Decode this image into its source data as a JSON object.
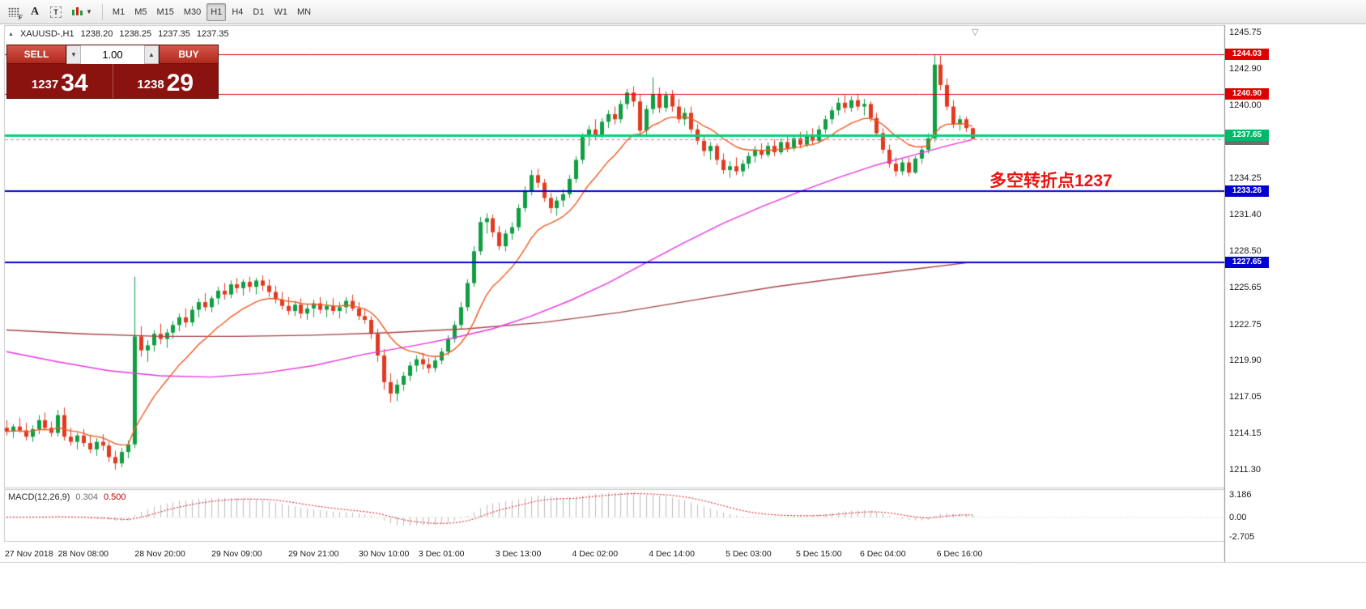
{
  "toolbar": {
    "icon_letters": {
      "f": "F",
      "a": "A",
      "t": "T"
    },
    "timeframes": [
      "M1",
      "M5",
      "M15",
      "M30",
      "H1",
      "H4",
      "D1",
      "W1",
      "MN"
    ],
    "active_timeframe": "H1"
  },
  "symbol_header": {
    "symbol": "XAUUSD-,H1",
    "open": "1238.20",
    "high": "1238.25",
    "low": "1237.35",
    "close": "1237.35"
  },
  "trade_panel": {
    "sell_label": "SELL",
    "buy_label": "BUY",
    "volume": "1.00",
    "sell_price_major": "1237",
    "sell_price_minor": "34",
    "buy_price_major": "1238",
    "buy_price_minor": "29"
  },
  "annotation": {
    "text": "多空转折点1237",
    "color": "#ee1212"
  },
  "shift_marker": "▽",
  "chart_data": {
    "type": "candlestick",
    "symbol": "XAUUSD-",
    "timeframe": "H1",
    "ylim": [
      1209.9,
      1246.25
    ],
    "y_ticks": [
      1245.75,
      1242.9,
      1240.0,
      1237.05,
      1234.25,
      1231.4,
      1228.5,
      1225.65,
      1222.75,
      1219.9,
      1217.05,
      1214.15,
      1211.3
    ],
    "x_ticks": [
      [
        0,
        "27 Nov 2018"
      ],
      [
        12,
        "28 Nov 08:00"
      ],
      [
        24,
        "28 Nov 20:00"
      ],
      [
        36,
        "29 Nov 09:00"
      ],
      [
        48,
        "29 Nov 21:00"
      ],
      [
        59,
        "30 Nov 10:00"
      ],
      [
        68,
        "3 Dec 01:00"
      ],
      [
        80,
        "3 Dec 13:00"
      ],
      [
        92,
        "4 Dec 02:00"
      ],
      [
        104,
        "4 Dec 14:00"
      ],
      [
        116,
        "5 Dec 03:00"
      ],
      [
        127,
        "5 Dec 15:00"
      ],
      [
        137,
        "6 Dec 04:00"
      ],
      [
        149,
        "6 Dec 16:00"
      ]
    ],
    "hlines": [
      {
        "price": 1244.03,
        "label": "1244.03",
        "color": "#e10000",
        "badge": "#dd0000",
        "width": 1,
        "dashed": false
      },
      {
        "price": 1240.9,
        "label": "1240.90",
        "color": "#e10000",
        "badge": "#dd0000",
        "width": 1,
        "dashed": false
      },
      {
        "price": 1237.35,
        "label": "1237.35",
        "color": "#9a9a9a",
        "badge": "#6e6e6e",
        "width": 1,
        "dashed": true
      },
      {
        "price": 1237.65,
        "label": "1237.65",
        "color": "#00d37c",
        "badge": "#00b96b",
        "width": 3,
        "dashed": false
      },
      {
        "price": 1233.26,
        "label": "1233.26",
        "color": "#0202cc",
        "badge": "#0202cc",
        "width": 2,
        "dashed": false
      },
      {
        "price": 1227.65,
        "label": "1227.65",
        "color": "#0202cc",
        "badge": "#0202cc",
        "width": 2,
        "dashed": false
      }
    ],
    "ma_fast_period": 13,
    "ma_mid_anchors": [
      [
        0,
        1220.6
      ],
      [
        8,
        1219.8
      ],
      [
        16,
        1219.1
      ],
      [
        24,
        1218.7
      ],
      [
        32,
        1218.6
      ],
      [
        40,
        1218.9
      ],
      [
        48,
        1219.5
      ],
      [
        56,
        1220.4
      ],
      [
        64,
        1221.1
      ],
      [
        70,
        1221.7
      ],
      [
        76,
        1222.4
      ],
      [
        82,
        1223.4
      ],
      [
        88,
        1224.6
      ],
      [
        94,
        1226.0
      ],
      [
        100,
        1227.6
      ],
      [
        106,
        1229.2
      ],
      [
        112,
        1230.7
      ],
      [
        118,
        1232.0
      ],
      [
        124,
        1233.2
      ],
      [
        130,
        1234.3
      ],
      [
        136,
        1235.3
      ],
      [
        142,
        1236.1
      ],
      [
        147,
        1236.8
      ],
      [
        151,
        1237.3
      ]
    ],
    "ma_slow_anchors": [
      [
        0,
        1222.3
      ],
      [
        12,
        1222.0
      ],
      [
        24,
        1221.8
      ],
      [
        36,
        1221.8
      ],
      [
        48,
        1221.9
      ],
      [
        60,
        1222.1
      ],
      [
        72,
        1222.4
      ],
      [
        84,
        1222.9
      ],
      [
        96,
        1223.7
      ],
      [
        108,
        1224.7
      ],
      [
        120,
        1225.7
      ],
      [
        132,
        1226.5
      ],
      [
        142,
        1227.1
      ],
      [
        151,
        1227.65
      ]
    ],
    "candles": [
      [
        1214.6,
        1215.2,
        1214.0,
        1214.3
      ],
      [
        1214.3,
        1214.9,
        1213.8,
        1214.7
      ],
      [
        1214.7,
        1215.4,
        1214.2,
        1214.4
      ],
      [
        1214.4,
        1215.0,
        1213.6,
        1213.9
      ],
      [
        1213.9,
        1214.8,
        1213.5,
        1214.5
      ],
      [
        1214.5,
        1215.6,
        1214.1,
        1215.2
      ],
      [
        1215.2,
        1215.8,
        1214.4,
        1214.6
      ],
      [
        1214.6,
        1215.1,
        1213.9,
        1214.2
      ],
      [
        1214.2,
        1216.0,
        1213.9,
        1215.6
      ],
      [
        1215.6,
        1216.2,
        1213.6,
        1213.9
      ],
      [
        1213.9,
        1214.6,
        1213.2,
        1213.5
      ],
      [
        1213.5,
        1214.2,
        1212.9,
        1214.0
      ],
      [
        1214.0,
        1214.5,
        1213.1,
        1213.4
      ],
      [
        1213.4,
        1214.0,
        1212.6,
        1212.9
      ],
      [
        1212.9,
        1213.8,
        1212.4,
        1213.5
      ],
      [
        1213.5,
        1214.1,
        1212.8,
        1213.2
      ],
      [
        1213.2,
        1213.5,
        1211.9,
        1212.3
      ],
      [
        1212.3,
        1212.8,
        1211.3,
        1211.8
      ],
      [
        1211.8,
        1213.0,
        1211.5,
        1212.7
      ],
      [
        1212.7,
        1213.6,
        1212.2,
        1213.3
      ],
      [
        1213.3,
        1226.5,
        1213.0,
        1221.8
      ],
      [
        1221.8,
        1222.6,
        1220.2,
        1220.7
      ],
      [
        1220.7,
        1221.5,
        1219.8,
        1221.1
      ],
      [
        1221.1,
        1222.3,
        1220.6,
        1222.0
      ],
      [
        1222.0,
        1222.8,
        1221.2,
        1221.6
      ],
      [
        1221.6,
        1222.4,
        1220.9,
        1222.1
      ],
      [
        1222.1,
        1223.0,
        1221.6,
        1222.7
      ],
      [
        1222.7,
        1223.6,
        1222.2,
        1223.3
      ],
      [
        1223.3,
        1224.0,
        1222.5,
        1222.9
      ],
      [
        1222.9,
        1224.2,
        1222.6,
        1223.9
      ],
      [
        1223.9,
        1224.8,
        1223.3,
        1224.5
      ],
      [
        1224.5,
        1225.2,
        1223.8,
        1224.1
      ],
      [
        1224.1,
        1225.0,
        1223.7,
        1224.8
      ],
      [
        1224.8,
        1225.7,
        1224.3,
        1225.4
      ],
      [
        1225.4,
        1226.0,
        1224.7,
        1225.1
      ],
      [
        1225.1,
        1226.2,
        1224.8,
        1225.9
      ],
      [
        1225.9,
        1226.4,
        1225.2,
        1225.6
      ],
      [
        1225.6,
        1226.3,
        1225.0,
        1226.1
      ],
      [
        1226.1,
        1226.5,
        1225.3,
        1225.7
      ],
      [
        1225.7,
        1226.4,
        1225.1,
        1226.2
      ],
      [
        1226.2,
        1226.6,
        1225.4,
        1225.8
      ],
      [
        1225.8,
        1226.3,
        1224.9,
        1225.3
      ],
      [
        1225.3,
        1225.8,
        1224.4,
        1224.7
      ],
      [
        1224.7,
        1225.3,
        1223.9,
        1224.2
      ],
      [
        1224.2,
        1224.9,
        1223.5,
        1223.8
      ],
      [
        1223.8,
        1224.6,
        1223.4,
        1224.3
      ],
      [
        1224.3,
        1224.8,
        1223.2,
        1223.6
      ],
      [
        1223.6,
        1224.4,
        1223.1,
        1224.0
      ],
      [
        1224.0,
        1224.7,
        1223.3,
        1224.4
      ],
      [
        1224.4,
        1224.9,
        1223.6,
        1223.9
      ],
      [
        1223.9,
        1224.6,
        1223.3,
        1224.2
      ],
      [
        1224.2,
        1224.8,
        1223.5,
        1223.8
      ],
      [
        1223.8,
        1224.5,
        1223.2,
        1224.1
      ],
      [
        1224.1,
        1224.9,
        1223.6,
        1224.6
      ],
      [
        1224.6,
        1225.1,
        1223.8,
        1224.0
      ],
      [
        1224.0,
        1224.5,
        1223.1,
        1223.4
      ],
      [
        1223.4,
        1224.0,
        1222.8,
        1223.1
      ],
      [
        1223.1,
        1223.4,
        1221.6,
        1222.0
      ],
      [
        1222.0,
        1222.4,
        1219.8,
        1220.3
      ],
      [
        1220.3,
        1220.8,
        1217.6,
        1218.2
      ],
      [
        1218.2,
        1218.9,
        1216.6,
        1217.3
      ],
      [
        1217.3,
        1218.4,
        1216.7,
        1218.0
      ],
      [
        1218.0,
        1219.0,
        1217.5,
        1218.7
      ],
      [
        1218.7,
        1219.8,
        1218.3,
        1219.5
      ],
      [
        1219.5,
        1220.3,
        1219.0,
        1220.0
      ],
      [
        1220.0,
        1220.5,
        1219.2,
        1219.6
      ],
      [
        1219.6,
        1220.1,
        1218.9,
        1219.3
      ],
      [
        1219.3,
        1220.2,
        1219.0,
        1219.9
      ],
      [
        1219.9,
        1220.9,
        1219.6,
        1220.6
      ],
      [
        1220.6,
        1221.9,
        1220.3,
        1221.6
      ],
      [
        1221.6,
        1223.0,
        1221.3,
        1222.7
      ],
      [
        1222.7,
        1224.5,
        1222.4,
        1224.1
      ],
      [
        1224.1,
        1226.3,
        1223.8,
        1226.0
      ],
      [
        1226.0,
        1228.9,
        1225.7,
        1228.5
      ],
      [
        1228.5,
        1231.2,
        1228.2,
        1230.8
      ],
      [
        1230.8,
        1231.5,
        1229.9,
        1231.1
      ],
      [
        1231.1,
        1231.4,
        1229.6,
        1230.0
      ],
      [
        1230.0,
        1230.5,
        1228.6,
        1228.9
      ],
      [
        1228.9,
        1230.2,
        1228.5,
        1229.9
      ],
      [
        1229.9,
        1230.8,
        1229.4,
        1230.4
      ],
      [
        1230.4,
        1232.2,
        1230.1,
        1231.9
      ],
      [
        1231.9,
        1233.6,
        1231.6,
        1233.2
      ],
      [
        1233.2,
        1234.9,
        1232.9,
        1234.5
      ],
      [
        1234.5,
        1235.0,
        1233.5,
        1233.9
      ],
      [
        1233.9,
        1234.2,
        1232.4,
        1232.7
      ],
      [
        1232.7,
        1233.1,
        1231.5,
        1231.9
      ],
      [
        1231.9,
        1232.8,
        1231.3,
        1232.5
      ],
      [
        1232.5,
        1233.4,
        1232.0,
        1233.0
      ],
      [
        1233.0,
        1234.5,
        1232.7,
        1234.2
      ],
      [
        1234.2,
        1236.0,
        1233.9,
        1235.7
      ],
      [
        1235.7,
        1237.8,
        1235.4,
        1237.5
      ],
      [
        1237.5,
        1238.4,
        1236.8,
        1238.1
      ],
      [
        1238.1,
        1238.9,
        1237.3,
        1237.7
      ],
      [
        1237.7,
        1239.0,
        1237.4,
        1238.7
      ],
      [
        1238.7,
        1239.6,
        1238.2,
        1239.3
      ],
      [
        1239.3,
        1239.9,
        1238.5,
        1238.9
      ],
      [
        1238.9,
        1240.4,
        1238.6,
        1240.1
      ],
      [
        1240.1,
        1241.3,
        1239.7,
        1241.0
      ],
      [
        1241.0,
        1241.5,
        1239.9,
        1240.3
      ],
      [
        1240.3,
        1240.9,
        1237.6,
        1238.0
      ],
      [
        1238.0,
        1240.0,
        1237.5,
        1239.7
      ],
      [
        1239.7,
        1242.2,
        1239.3,
        1240.9
      ],
      [
        1240.9,
        1241.4,
        1239.4,
        1239.8
      ],
      [
        1239.8,
        1241.1,
        1239.5,
        1240.8
      ],
      [
        1240.8,
        1241.2,
        1239.5,
        1239.9
      ],
      [
        1239.9,
        1240.5,
        1238.6,
        1238.9
      ],
      [
        1238.9,
        1239.8,
        1238.4,
        1239.4
      ],
      [
        1239.4,
        1239.9,
        1237.8,
        1238.1
      ],
      [
        1238.1,
        1238.5,
        1236.9,
        1237.2
      ],
      [
        1237.2,
        1237.7,
        1236.0,
        1236.4
      ],
      [
        1236.4,
        1237.1,
        1235.7,
        1236.8
      ],
      [
        1236.8,
        1237.0,
        1235.3,
        1235.7
      ],
      [
        1235.7,
        1236.2,
        1234.6,
        1234.9
      ],
      [
        1234.9,
        1235.6,
        1234.3,
        1235.2
      ],
      [
        1235.2,
        1235.9,
        1234.5,
        1234.8
      ],
      [
        1234.8,
        1235.7,
        1234.4,
        1235.4
      ],
      [
        1235.4,
        1236.3,
        1235.0,
        1236.0
      ],
      [
        1236.0,
        1236.8,
        1235.5,
        1236.5
      ],
      [
        1236.5,
        1237.0,
        1235.8,
        1236.1
      ],
      [
        1236.1,
        1237.1,
        1235.9,
        1236.8
      ],
      [
        1236.8,
        1237.3,
        1236.0,
        1236.3
      ],
      [
        1236.3,
        1237.4,
        1236.1,
        1237.1
      ],
      [
        1237.1,
        1237.6,
        1236.3,
        1236.6
      ],
      [
        1236.6,
        1237.7,
        1236.4,
        1237.4
      ],
      [
        1237.4,
        1237.9,
        1236.6,
        1236.9
      ],
      [
        1236.9,
        1238.0,
        1236.7,
        1237.7
      ],
      [
        1237.7,
        1238.2,
        1236.9,
        1237.2
      ],
      [
        1237.2,
        1238.4,
        1237.0,
        1238.1
      ],
      [
        1238.1,
        1239.2,
        1237.8,
        1238.9
      ],
      [
        1238.9,
        1239.9,
        1238.5,
        1239.6
      ],
      [
        1239.6,
        1240.6,
        1239.2,
        1240.2
      ],
      [
        1240.2,
        1240.8,
        1239.4,
        1239.8
      ],
      [
        1239.8,
        1240.7,
        1239.5,
        1240.4
      ],
      [
        1240.4,
        1240.9,
        1239.6,
        1239.9
      ],
      [
        1239.9,
        1240.5,
        1239.2,
        1240.1
      ],
      [
        1240.1,
        1240.3,
        1238.7,
        1239.0
      ],
      [
        1239.0,
        1239.4,
        1237.5,
        1237.8
      ],
      [
        1237.8,
        1238.2,
        1236.2,
        1236.5
      ],
      [
        1236.5,
        1236.9,
        1235.1,
        1235.4
      ],
      [
        1235.4,
        1235.9,
        1234.4,
        1234.8
      ],
      [
        1234.8,
        1235.8,
        1234.5,
        1235.5
      ],
      [
        1235.5,
        1235.9,
        1234.4,
        1234.7
      ],
      [
        1234.7,
        1236.0,
        1234.6,
        1235.8
      ],
      [
        1235.8,
        1236.8,
        1235.4,
        1236.5
      ],
      [
        1236.5,
        1237.8,
        1236.2,
        1237.4
      ],
      [
        1237.4,
        1244.03,
        1237.1,
        1243.2
      ],
      [
        1243.2,
        1243.9,
        1241.2,
        1241.6
      ],
      [
        1241.6,
        1242.1,
        1239.6,
        1239.9
      ],
      [
        1239.9,
        1240.4,
        1238.2,
        1238.5
      ],
      [
        1238.5,
        1239.2,
        1238.0,
        1238.9
      ],
      [
        1238.9,
        1239.1,
        1237.9,
        1238.2
      ],
      [
        1238.2,
        1238.25,
        1237.35,
        1237.35
      ]
    ],
    "macd": {
      "label": "MACD(12,26,9)",
      "value": "0.304",
      "signal": "0.500",
      "fast": 12,
      "slow": 26,
      "signal_period": 9,
      "ylim": [
        -3.3,
        3.7
      ],
      "y_ticks": [
        3.186,
        0,
        -2.705
      ],
      "y_tick_labels": [
        "3.186",
        "0.00",
        "-2.705"
      ]
    },
    "colors": {
      "up": "#119e42",
      "down": "#e23a20",
      "ma_fast": "#ef5a22",
      "ma_mid": "#e935e0",
      "ma_slow": "#a84448",
      "macd_bar": "#bdbdbd",
      "macd_signal": "#e01010",
      "axis_text": "#1a1a1a",
      "frame": "#c8c8c8"
    }
  }
}
